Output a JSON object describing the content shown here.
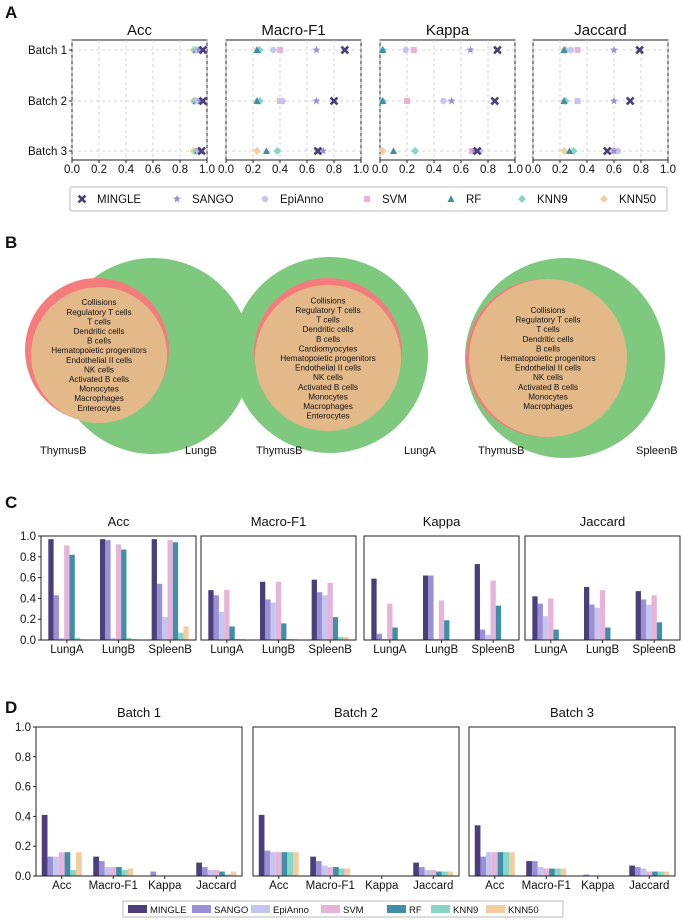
{
  "colors": {
    "MINGLE": "#4a3f7a",
    "SANGO": "#9b8fd6",
    "EpiAnno": "#c4c6ef",
    "SVM": "#e8b3d9",
    "RF": "#3f8fa8",
    "KNN9": "#86d6c8",
    "KNN50": "#f3cca1",
    "venn_a": "#f47c7c",
    "venn_b": "#7fc97f",
    "venn_overlap": "#e3b98a"
  },
  "panel_labels": [
    "A",
    "B",
    "C",
    "D"
  ],
  "methods": [
    "MINGLE",
    "SANGO",
    "EpiAnno",
    "SVM",
    "RF",
    "KNN9",
    "KNN50"
  ],
  "chart_data": [
    {
      "id": "A",
      "type": "scatter",
      "subplots": [
        "Acc",
        "Macro-F1",
        "Kappa",
        "Jaccard"
      ],
      "categories": [
        "Batch 1",
        "Batch 2",
        "Batch 3"
      ],
      "xlim": [
        0,
        1
      ],
      "xticks": [
        "0.0",
        "0.2",
        "0.4",
        "0.6",
        "0.8",
        "1.0"
      ],
      "legend": "bottom",
      "markers": {
        "MINGLE": "X",
        "SANGO": "*",
        "EpiAnno": "o",
        "SVM": "s",
        "RF": "^",
        "KNN9": "D",
        "KNN50": "D"
      },
      "series": [
        {
          "name": "MINGLE",
          "values": {
            "Acc": [
              0.97,
              0.97,
              0.96
            ],
            "Macro-F1": [
              0.88,
              0.8,
              0.68
            ],
            "Kappa": [
              0.87,
              0.85,
              0.72
            ],
            "Jaccard": [
              0.79,
              0.72,
              0.55
            ]
          }
        },
        {
          "name": "SANGO",
          "values": {
            "Acc": [
              0.94,
              0.95,
              0.95
            ],
            "Macro-F1": [
              0.67,
              0.67,
              0.72
            ],
            "Kappa": [
              0.67,
              0.53,
              0.7
            ],
            "Jaccard": [
              0.6,
              0.6,
              0.6
            ]
          }
        },
        {
          "name": "EpiAnno",
          "values": {
            "Acc": [
              0.93,
              0.93,
              0.94
            ],
            "Macro-F1": [
              0.35,
              0.42,
              0.7
            ],
            "Kappa": [
              0.19,
              0.47,
              0.74
            ],
            "Jaccard": [
              0.28,
              0.33,
              0.63
            ]
          }
        },
        {
          "name": "SVM",
          "values": {
            "Acc": [
              0.93,
              0.93,
              0.94
            ],
            "Macro-F1": [
              0.4,
              0.4,
              0.68
            ],
            "Kappa": [
              0.25,
              0.2,
              0.68
            ],
            "Jaccard": [
              0.33,
              0.33,
              0.6
            ]
          }
        },
        {
          "name": "RF",
          "values": {
            "Acc": [
              0.92,
              0.92,
              0.93
            ],
            "Macro-F1": [
              0.23,
              0.23,
              0.3
            ],
            "Kappa": [
              0.02,
              0.02,
              0.1
            ],
            "Jaccard": [
              0.23,
              0.23,
              0.27
            ]
          }
        },
        {
          "name": "KNN9",
          "values": {
            "Acc": [
              0.91,
              0.91,
              0.92
            ],
            "Macro-F1": [
              0.25,
              0.25,
              0.38
            ],
            "Kappa": [
              0.02,
              0.02,
              0.26
            ],
            "Jaccard": [
              0.24,
              0.24,
              0.3
            ]
          }
        },
        {
          "name": "KNN50",
          "values": {
            "Acc": [
              0.9,
              0.9,
              0.9
            ],
            "Macro-F1": [
              0.23,
              0.23,
              0.23
            ],
            "Kappa": [
              0.02,
              0.02,
              0.02
            ],
            "Jaccard": [
              0.23,
              0.23,
              0.23
            ]
          }
        }
      ]
    },
    {
      "id": "B",
      "type": "venn",
      "diagrams": [
        {
          "left": "ThymusB",
          "right": "LungB",
          "shared": [
            "Collisions",
            "Regulatory T cells",
            "T cells",
            "Dendritic cells",
            "B cells",
            "Hematopoietic progenitors",
            "Endothelial II cells",
            "NK cells",
            "Activated B cells",
            "Monocytes",
            "Macrophages",
            "Enterocytes"
          ]
        },
        {
          "left": "ThymusB",
          "right": "LungA",
          "shared": [
            "Collisions",
            "Regulatory T cells",
            "T cells",
            "Dendritic cells",
            "B cells",
            "Cardiomyocytes",
            "Hematopoietic progenitors",
            "Endothelial II cells",
            "NK cells",
            "Activated B cells",
            "Monocytes",
            "Macrophages",
            "Enterocytes"
          ]
        },
        {
          "left": "ThymusB",
          "right": "SpleenB",
          "shared": [
            "Collisions",
            "Regulatory T cells",
            "T cells",
            "Dendritic cells",
            "B cells",
            "Hematopoietic progenitors",
            "Endothelial II cells",
            "NK cells",
            "Activated B cells",
            "Monocytes",
            "Macrophages"
          ]
        }
      ]
    },
    {
      "id": "C",
      "type": "bar",
      "subplots": [
        "Acc",
        "Macro-F1",
        "Kappa",
        "Jaccard"
      ],
      "categories": [
        "LungA",
        "LungB",
        "SpleenB"
      ],
      "ylim": [
        0,
        1
      ],
      "yticks": [
        "0.0",
        "0.2",
        "0.4",
        "0.6",
        "0.8",
        "1.0"
      ],
      "series": [
        {
          "name": "MINGLE",
          "values": {
            "Acc": [
              0.97,
              0.97,
              0.97
            ],
            "Macro-F1": [
              0.48,
              0.56,
              0.58
            ],
            "Kappa": [
              0.59,
              0.62,
              0.73
            ],
            "Jaccard": [
              0.42,
              0.51,
              0.47
            ]
          }
        },
        {
          "name": "SANGO",
          "values": {
            "Acc": [
              0.43,
              0.96,
              0.54
            ],
            "Macro-F1": [
              0.43,
              0.39,
              0.46
            ],
            "Kappa": [
              0.06,
              0.62,
              0.1
            ],
            "Jaccard": [
              0.35,
              0.34,
              0.39
            ]
          }
        },
        {
          "name": "EpiAnno",
          "values": {
            "Acc": [
              0.02,
              0.02,
              0.22
            ],
            "Macro-F1": [
              0.27,
              0.36,
              0.43
            ],
            "Kappa": [
              0.01,
              0.01,
              0.05
            ],
            "Jaccard": [
              0.23,
              0.31,
              0.34
            ]
          }
        },
        {
          "name": "SVM",
          "values": {
            "Acc": [
              0.91,
              0.92,
              0.96
            ],
            "Macro-F1": [
              0.48,
              0.56,
              0.55
            ],
            "Kappa": [
              0.35,
              0.38,
              0.57
            ],
            "Jaccard": [
              0.4,
              0.48,
              0.43
            ]
          }
        },
        {
          "name": "RF",
          "values": {
            "Acc": [
              0.82,
              0.87,
              0.94
            ],
            "Macro-F1": [
              0.13,
              0.16,
              0.22
            ],
            "Kappa": [
              0.12,
              0.19,
              0.33
            ],
            "Jaccard": [
              0.1,
              0.12,
              0.17
            ]
          }
        },
        {
          "name": "KNN9",
          "values": {
            "Acc": [
              0.02,
              0.02,
              0.07
            ],
            "Macro-F1": [
              0.01,
              0.01,
              0.03
            ],
            "Kappa": [
              0,
              0,
              0
            ],
            "Jaccard": [
              0,
              0,
              0
            ]
          }
        },
        {
          "name": "KNN50",
          "values": {
            "Acc": [
              0.01,
              0.01,
              0.13
            ],
            "Macro-F1": [
              0.01,
              0.01,
              0.03
            ],
            "Kappa": [
              0,
              0,
              0
            ],
            "Jaccard": [
              0,
              0,
              0
            ]
          }
        }
      ]
    },
    {
      "id": "D",
      "type": "bar",
      "subplots": [
        "Batch 1",
        "Batch 2",
        "Batch 3"
      ],
      "categories": [
        "Acc",
        "Macro-F1",
        "Kappa",
        "Jaccard"
      ],
      "ylim": [
        0,
        1
      ],
      "yticks": [
        "0.0",
        "0.2",
        "0.4",
        "0.6",
        "0.8",
        "1.0"
      ],
      "legend": "bottom",
      "series": [
        {
          "name": "MINGLE",
          "values": {
            "Batch 1": [
              0.41,
              0.13,
              0.0,
              0.09
            ],
            "Batch 2": [
              0.41,
              0.13,
              0.0,
              0.09
            ],
            "Batch 3": [
              0.34,
              0.1,
              0.0,
              0.07
            ]
          }
        },
        {
          "name": "SANGO",
          "values": {
            "Batch 1": [
              0.13,
              0.1,
              0.03,
              0.06
            ],
            "Batch 2": [
              0.17,
              0.1,
              0.0,
              0.06
            ],
            "Batch 3": [
              0.13,
              0.1,
              0.01,
              0.06
            ]
          }
        },
        {
          "name": "EpiAnno",
          "values": {
            "Batch 1": [
              0.13,
              0.06,
              0.0,
              0.04
            ],
            "Batch 2": [
              0.16,
              0.07,
              0.0,
              0.04
            ],
            "Batch 3": [
              0.16,
              0.06,
              0.0,
              0.05
            ]
          }
        },
        {
          "name": "SVM",
          "values": {
            "Batch 1": [
              0.16,
              0.06,
              0.0,
              0.04
            ],
            "Batch 2": [
              0.16,
              0.06,
              0.0,
              0.04
            ],
            "Batch 3": [
              0.16,
              0.05,
              0.0,
              0.03
            ]
          }
        },
        {
          "name": "RF",
          "values": {
            "Batch 1": [
              0.16,
              0.06,
              0.0,
              0.03
            ],
            "Batch 2": [
              0.16,
              0.06,
              0.0,
              0.03
            ],
            "Batch 3": [
              0.16,
              0.05,
              0.0,
              0.03
            ]
          }
        },
        {
          "name": "KNN9",
          "values": {
            "Batch 1": [
              0.04,
              0.04,
              0.0,
              0.01
            ],
            "Batch 2": [
              0.16,
              0.05,
              0.0,
              0.03
            ],
            "Batch 3": [
              0.16,
              0.05,
              0.0,
              0.03
            ]
          }
        },
        {
          "name": "KNN50",
          "values": {
            "Batch 1": [
              0.16,
              0.05,
              0.0,
              0.03
            ],
            "Batch 2": [
              0.16,
              0.05,
              0.0,
              0.03
            ],
            "Batch 3": [
              0.16,
              0.05,
              0.0,
              0.03
            ]
          }
        }
      ]
    }
  ]
}
